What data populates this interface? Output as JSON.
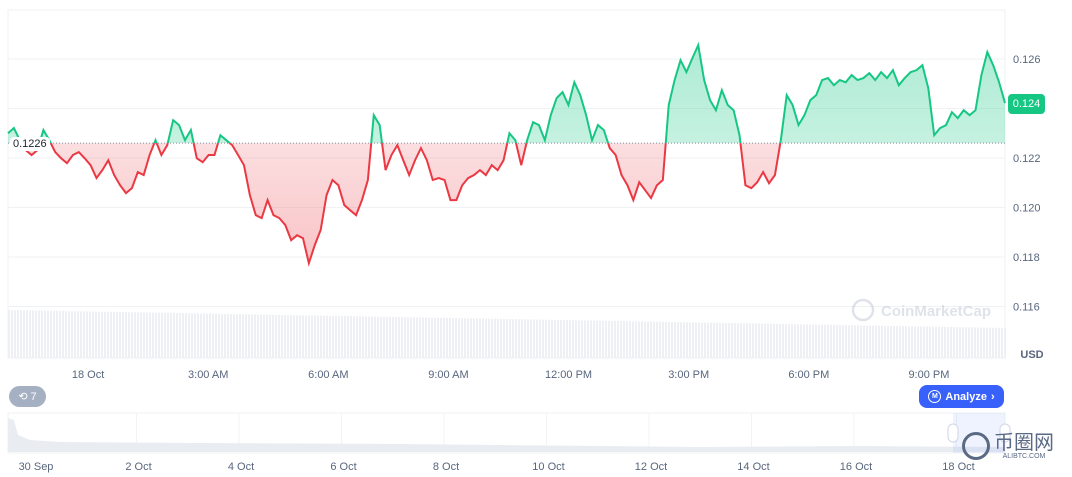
{
  "chart_data": {
    "type": "line",
    "title": "",
    "currency_label": "USD",
    "baseline": 0.1226,
    "baseline_label": "0.1226",
    "current_price_label": "0.124",
    "x_range_hours": [
      -2.0,
      22.9
    ],
    "x_unit": "hours since 18 Oct 00:00",
    "ylim": [
      0.1148,
      0.1268
    ],
    "y_ticks": [
      0.116,
      0.118,
      0.12,
      0.122,
      0.124,
      0.126
    ],
    "y_tick_labels": [
      "0.116",
      "0.118",
      "0.120",
      "0.122",
      "0.124",
      "0.126"
    ],
    "x_ticks": [
      {
        "h": 0,
        "label": "18 Oct"
      },
      {
        "h": 3,
        "label": "3:00 AM"
      },
      {
        "h": 6,
        "label": "6:00 AM"
      },
      {
        "h": 9,
        "label": "9:00 AM"
      },
      {
        "h": 12,
        "label": "12:00 PM"
      },
      {
        "h": 15,
        "label": "3:00 PM"
      },
      {
        "h": 18,
        "label": "6:00 PM"
      },
      {
        "h": 21,
        "label": "9:00 PM"
      }
    ],
    "up_color": "#16c784",
    "down_color": "#ea3943",
    "values": [
      0.123,
      0.12321,
      0.12272,
      0.12232,
      0.12212,
      0.12232,
      0.12313,
      0.12272,
      0.12224,
      0.12199,
      0.12179,
      0.12212,
      0.12224,
      0.12199,
      0.12171,
      0.12119,
      0.12151,
      0.12191,
      0.12131,
      0.1209,
      0.12058,
      0.12078,
      0.12143,
      0.12131,
      0.12212,
      0.12272,
      0.12212,
      0.12252,
      0.12353,
      0.12333,
      0.12272,
      0.12313,
      0.12199,
      0.12183,
      0.12212,
      0.12212,
      0.12292,
      0.12272,
      0.12252,
      0.12212,
      0.12171,
      0.1205,
      0.11969,
      0.11957,
      0.1203,
      0.11969,
      0.11957,
      0.11929,
      0.11868,
      0.11888,
      0.11876,
      0.11775,
      0.11848,
      0.11909,
      0.1205,
      0.12111,
      0.1209,
      0.1201,
      0.11989,
      0.11969,
      0.1203,
      0.12111,
      0.12373,
      0.12333,
      0.12151,
      0.12212,
      0.12252,
      0.12191,
      0.12131,
      0.12191,
      0.1224,
      0.12191,
      0.12111,
      0.12119,
      0.12111,
      0.1203,
      0.1203,
      0.1209,
      0.12119,
      0.12131,
      0.12151,
      0.12131,
      0.12171,
      0.12151,
      0.12191,
      0.123,
      0.12272,
      0.12171,
      0.12272,
      0.12345,
      0.12333,
      0.12272,
      0.12373,
      0.12442,
      0.12466,
      0.12414,
      0.12506,
      0.12454,
      0.12373,
      0.12272,
      0.12333,
      0.12313,
      0.1224,
      0.12212,
      0.12131,
      0.1209,
      0.1203,
      0.12102,
      0.1207,
      0.12038,
      0.1209,
      0.12111,
      0.12414,
      0.12515,
      0.12595,
      0.12547,
      0.12603,
      0.12656,
      0.12515,
      0.12434,
      0.12393,
      0.12474,
      0.12414,
      0.12393,
      0.12292,
      0.1209,
      0.12078,
      0.12102,
      0.12143,
      0.12098,
      0.12131,
      0.12272,
      0.12454,
      0.12414,
      0.12333,
      0.12373,
      0.12434,
      0.12454,
      0.12515,
      0.12523,
      0.12494,
      0.12515,
      0.12506,
      0.12535,
      0.12515,
      0.12523,
      0.12543,
      0.12515,
      0.12547,
      0.12523,
      0.12555,
      0.12494,
      0.12523,
      0.12547,
      0.12555,
      0.12575,
      0.12482,
      0.12292,
      0.12321,
      0.12333,
      0.12385,
      0.12361,
      0.12393,
      0.12373,
      0.12393,
      0.12535,
      0.12628,
      0.12575,
      0.12506,
      0.12422
    ],
    "navigator": {
      "labels": [
        "30 Sep",
        "2 Oct",
        "4 Oct",
        "6 Oct",
        "8 Oct",
        "10 Oct",
        "12 Oct",
        "14 Oct",
        "16 Oct",
        "18 Oct"
      ]
    }
  },
  "watermark": "CoinMarketCap",
  "history_button": {
    "count": "7"
  },
  "analyze_button": {
    "label": "Analyze"
  },
  "site_watermark": {
    "name": "币圈网",
    "domain": "ALIBTC.COM"
  }
}
